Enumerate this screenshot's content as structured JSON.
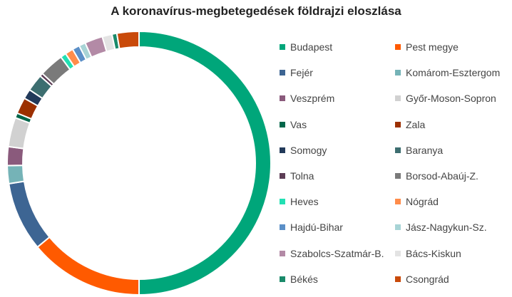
{
  "chart_data": {
    "type": "pie",
    "title": "A koronavírus-megbetegedések földrajzi eloszlása",
    "donut": true,
    "legend_position": "right",
    "slices": [
      {
        "label": "Budapest",
        "value": 50.0,
        "color": "#00a67a"
      },
      {
        "label": "Pest megye",
        "value": 14.0,
        "color": "#ff5a00"
      },
      {
        "label": "Fejér",
        "value": 8.5,
        "color": "#3d6593"
      },
      {
        "label": "Komárom-Esztergom",
        "value": 2.2,
        "color": "#75b3b7"
      },
      {
        "label": "Veszprém",
        "value": 2.3,
        "color": "#8a5a7c"
      },
      {
        "label": "Győr-Moson-Sopron",
        "value": 3.6,
        "color": "#d1d1d1"
      },
      {
        "label": "Vas",
        "value": 0.6,
        "color": "#00664a"
      },
      {
        "label": "Zala",
        "value": 2.0,
        "color": "#9c3000"
      },
      {
        "label": "Somogy",
        "value": 1.2,
        "color": "#223a5a"
      },
      {
        "label": "Baranya",
        "value": 2.1,
        "color": "#3d6e70"
      },
      {
        "label": "Tolna",
        "value": 0.4,
        "color": "#5c3d55"
      },
      {
        "label": "Borsod-Abaúj-Z.",
        "value": 3.0,
        "color": "#7a7a7a"
      },
      {
        "label": "Heves",
        "value": 0.7,
        "color": "#22e0b3"
      },
      {
        "label": "Nógrád",
        "value": 1.0,
        "color": "#ff8c4a"
      },
      {
        "label": "Hajdú-Bihar",
        "value": 0.9,
        "color": "#5b8fc7"
      },
      {
        "label": "Jász-Nagykun-Sz.",
        "value": 0.8,
        "color": "#a8d4d6"
      },
      {
        "label": "Szabolcs-Szatmár-B.",
        "value": 2.2,
        "color": "#b38aa6"
      },
      {
        "label": "Bács-Kiskun",
        "value": 1.2,
        "color": "#e3e3e3"
      },
      {
        "label": "Békés",
        "value": 0.6,
        "color": "#1a8a6a"
      },
      {
        "label": "Csongrád",
        "value": 2.7,
        "color": "#c94a0a"
      }
    ]
  }
}
